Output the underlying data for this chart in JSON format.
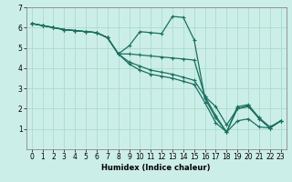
{
  "title": "",
  "xlabel": "Humidex (Indice chaleur)",
  "background_color": "#cceee8",
  "grid_color": "#aaddcc",
  "line_color": "#1a7060",
  "xlim": [
    -0.5,
    23.5
  ],
  "ylim": [
    0,
    7
  ],
  "x_ticks": [
    0,
    1,
    2,
    3,
    4,
    5,
    6,
    7,
    8,
    9,
    10,
    11,
    12,
    13,
    14,
    15,
    16,
    17,
    18,
    19,
    20,
    21,
    22,
    23
  ],
  "y_ticks": [
    1,
    2,
    3,
    4,
    5,
    6,
    7
  ],
  "lines": [
    {
      "x": [
        0,
        1,
        2,
        3,
        4,
        5,
        6,
        7,
        8,
        9,
        10,
        11,
        12,
        13,
        14,
        15,
        16,
        17,
        18,
        19,
        20,
        21,
        22,
        23
      ],
      "y": [
        6.2,
        6.1,
        6.0,
        5.9,
        5.85,
        5.8,
        5.75,
        5.5,
        4.7,
        5.1,
        5.8,
        5.75,
        5.7,
        6.55,
        6.5,
        5.4,
        2.5,
        1.55,
        0.85,
        2.1,
        2.2,
        1.55,
        1.05,
        1.4
      ]
    },
    {
      "x": [
        0,
        1,
        2,
        3,
        4,
        5,
        6,
        7,
        8,
        9,
        10,
        11,
        12,
        13,
        14,
        15,
        16,
        17,
        18,
        19,
        20,
        21,
        22,
        23
      ],
      "y": [
        6.2,
        6.1,
        6.0,
        5.9,
        5.85,
        5.8,
        5.75,
        5.5,
        4.7,
        4.7,
        4.65,
        4.6,
        4.55,
        4.5,
        4.45,
        4.4,
        2.6,
        1.65,
        0.85,
        2.0,
        2.15,
        1.5,
        1.05,
        1.4
      ]
    },
    {
      "x": [
        0,
        1,
        2,
        3,
        4,
        5,
        6,
        7,
        8,
        9,
        10,
        11,
        12,
        13,
        14,
        15,
        16,
        17,
        18,
        19,
        20,
        21,
        22,
        23
      ],
      "y": [
        6.2,
        6.1,
        6.0,
        5.9,
        5.85,
        5.8,
        5.75,
        5.5,
        4.7,
        4.3,
        4.1,
        3.9,
        3.8,
        3.7,
        3.55,
        3.4,
        2.6,
        2.1,
        1.2,
        2.0,
        2.1,
        1.55,
        1.1,
        1.4
      ]
    },
    {
      "x": [
        0,
        1,
        2,
        3,
        4,
        5,
        6,
        7,
        8,
        9,
        10,
        11,
        12,
        13,
        14,
        15,
        16,
        17,
        18,
        19,
        20,
        21,
        22,
        23
      ],
      "y": [
        6.2,
        6.1,
        6.0,
        5.9,
        5.85,
        5.8,
        5.75,
        5.5,
        4.7,
        4.2,
        3.9,
        3.7,
        3.6,
        3.5,
        3.35,
        3.2,
        2.3,
        1.3,
        0.85,
        1.4,
        1.5,
        1.1,
        1.05,
        1.4
      ]
    }
  ],
  "tick_fontsize": 5.5,
  "xlabel_fontsize": 6.0,
  "marker_size": 3.0,
  "linewidth": 0.9
}
